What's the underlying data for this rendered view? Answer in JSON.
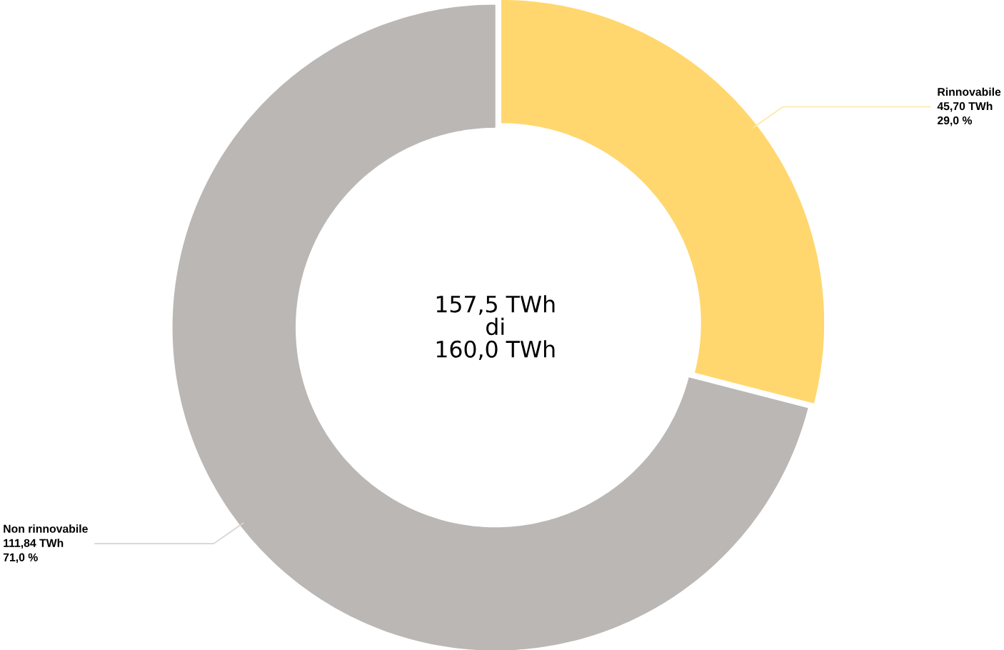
{
  "chart_data": {
    "type": "donut",
    "categories": [
      "Rinnovabile",
      "Non rinnovabile"
    ],
    "values": [
      45.7,
      111.84
    ],
    "colors": [
      "#ffd76e",
      "#bab7b4"
    ],
    "value_labels": [
      "45,70 TWh",
      "111,84 TWh"
    ],
    "annotations": [
      "29,0 %",
      "71,0 %",
      "157,5 TWh",
      "di",
      "160,0 TWh"
    ]
  }
}
